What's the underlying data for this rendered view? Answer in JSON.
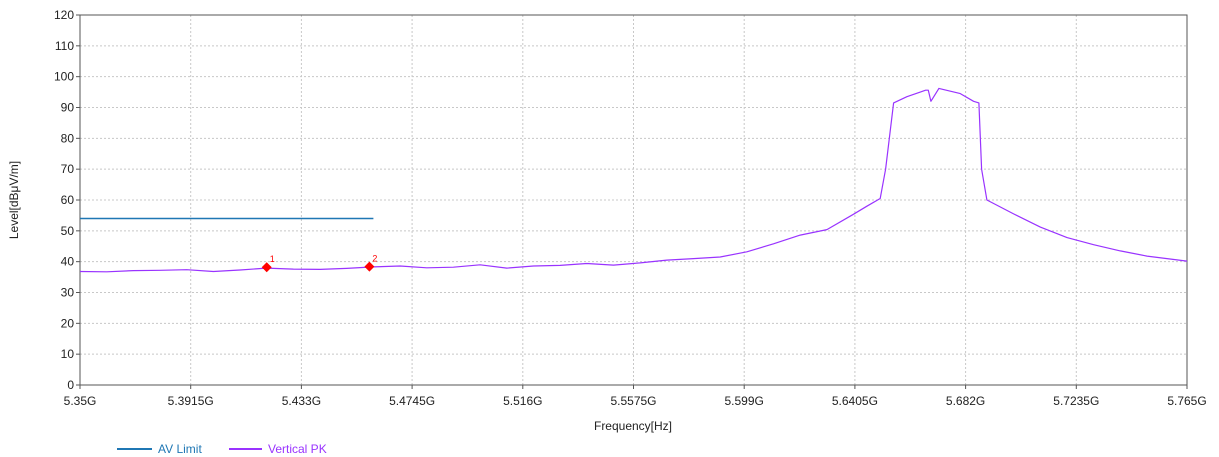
{
  "chart_data": {
    "type": "line",
    "title": "",
    "xlabel": "Frequency[Hz]",
    "ylabel": "Level[dBμV/m]",
    "xlim": [
      5.35,
      5.765
    ],
    "ylim": [
      0,
      120
    ],
    "x_unit_suffix": "G",
    "grid": true,
    "x_ticks": [
      {
        "value": 5.35,
        "label": "5.35G"
      },
      {
        "value": 5.3915,
        "label": "5.3915G"
      },
      {
        "value": 5.433,
        "label": "5.433G"
      },
      {
        "value": 5.4745,
        "label": "5.4745G"
      },
      {
        "value": 5.516,
        "label": "5.516G"
      },
      {
        "value": 5.5575,
        "label": "5.5575G"
      },
      {
        "value": 5.599,
        "label": "5.599G"
      },
      {
        "value": 5.6405,
        "label": "5.6405G"
      },
      {
        "value": 5.682,
        "label": "5.682G"
      },
      {
        "value": 5.7235,
        "label": "5.7235G"
      },
      {
        "value": 5.765,
        "label": "5.765G"
      }
    ],
    "y_ticks": [
      {
        "value": 0,
        "label": "0"
      },
      {
        "value": 10,
        "label": "10"
      },
      {
        "value": 20,
        "label": "20"
      },
      {
        "value": 30,
        "label": "30"
      },
      {
        "value": 40,
        "label": "40"
      },
      {
        "value": 50,
        "label": "50"
      },
      {
        "value": 60,
        "label": "60"
      },
      {
        "value": 70,
        "label": "70"
      },
      {
        "value": 80,
        "label": "80"
      },
      {
        "value": 90,
        "label": "90"
      },
      {
        "value": 100,
        "label": "100"
      },
      {
        "value": 110,
        "label": "110"
      },
      {
        "value": 120,
        "label": "120"
      }
    ],
    "legend_position": "bottom-left",
    "series": [
      {
        "name": "AV Limit",
        "color": "#1f77b4",
        "x": [
          5.35,
          5.46
        ],
        "y": [
          54,
          54
        ]
      },
      {
        "name": "Vertical PK",
        "color": "#9933ff",
        "x": [
          5.35,
          5.36,
          5.37,
          5.38,
          5.39,
          5.4,
          5.41,
          5.42,
          5.43,
          5.44,
          5.45,
          5.46,
          5.47,
          5.48,
          5.49,
          5.5,
          5.51,
          5.52,
          5.53,
          5.54,
          5.55,
          5.56,
          5.57,
          5.58,
          5.59,
          5.6,
          5.61,
          5.62,
          5.63,
          5.64,
          5.645,
          5.65,
          5.652,
          5.655,
          5.66,
          5.665,
          5.667,
          5.668,
          5.669,
          5.672,
          5.68,
          5.685,
          5.687,
          5.688,
          5.69,
          5.7,
          5.71,
          5.72,
          5.73,
          5.74,
          5.75,
          5.765
        ],
        "y": [
          36.8,
          36.7,
          37.1,
          37.2,
          37.4,
          36.8,
          37.3,
          37.9,
          37.6,
          37.5,
          37.8,
          38.3,
          38.6,
          38,
          38.2,
          39,
          37.9,
          38.6,
          38.8,
          39.4,
          38.9,
          39.6,
          40.5,
          41,
          41.5,
          43.2,
          45.8,
          48.6,
          50.4,
          55.4,
          58,
          60.5,
          70,
          91.5,
          93.5,
          95,
          95.6,
          95.6,
          92,
          96.2,
          94.5,
          92,
          91.5,
          70,
          60,
          55.5,
          51.2,
          47.8,
          45.5,
          43.5,
          41.8,
          40.2
        ]
      }
    ],
    "markers": [
      {
        "label": "1",
        "x": 5.42,
        "y": 38.2,
        "color": "#ff0000"
      },
      {
        "label": "2",
        "x": 5.4585,
        "y": 38.4,
        "color": "#ff0000"
      }
    ]
  }
}
